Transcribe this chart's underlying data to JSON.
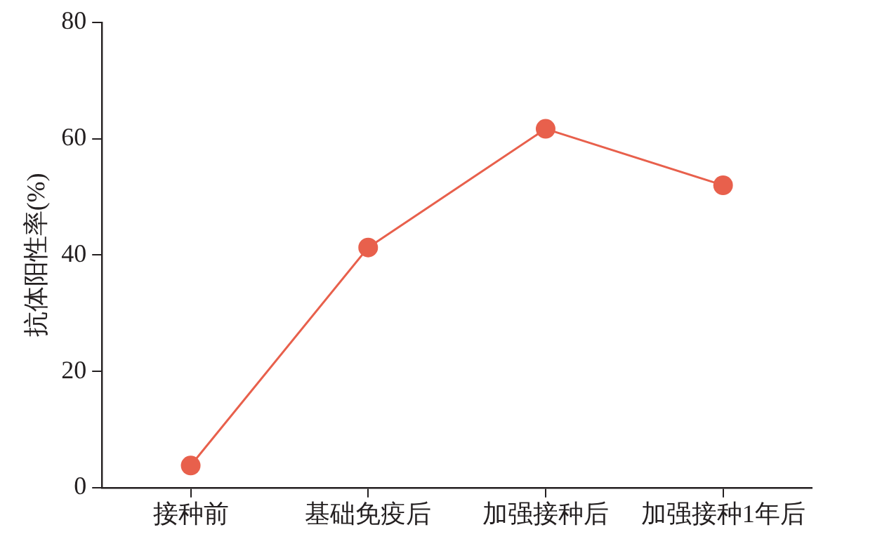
{
  "chart_data": {
    "type": "line",
    "ylabel": "抗体阳性率(%)",
    "categories": [
      "接种前",
      "基础免疫后",
      "加强接种后",
      "加强接种1年后"
    ],
    "series": [
      {
        "color": "#e8604c",
        "values": [
          3.8,
          41.3,
          61.7,
          52.0
        ]
      }
    ],
    "ylim": [
      0,
      80
    ],
    "yticks": [
      0,
      20,
      40,
      60,
      80
    ],
    "grid": false,
    "legend": false,
    "marker": "circle",
    "line_style": "solid"
  }
}
